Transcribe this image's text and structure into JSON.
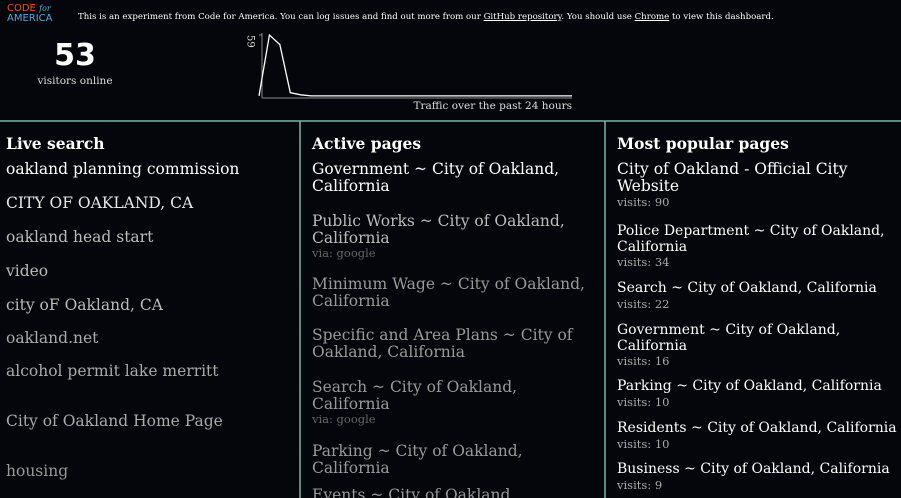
{
  "header": {
    "logo": {
      "code": "CODE",
      "for": "for",
      "america": "AMERICA"
    },
    "notice": {
      "text1": "This is an experiment from Code for America. You can log issues and find out more from our ",
      "link1": "GitHub repository",
      "text2": ". You should use ",
      "link2": "Chrome",
      "text3": " to view this dashboard."
    }
  },
  "visitors": {
    "count": 53,
    "label": "visitors online"
  },
  "chart_data": {
    "type": "line",
    "caption": "Traffic over the past 24 hours",
    "ylim": [
      0,
      59
    ],
    "yticks": [
      59
    ],
    "color": "#ffffff",
    "values": [
      2,
      59,
      50,
      5,
      3,
      2,
      2,
      2,
      2,
      2,
      2,
      2,
      2,
      2,
      2,
      2,
      2,
      2,
      2,
      2,
      2,
      2,
      2,
      2,
      2,
      2,
      2,
      2,
      2,
      2,
      2
    ]
  },
  "live_search": {
    "title": "Live search",
    "items": [
      "oakland planning commission",
      "CITY OF OAKLAND, CA",
      "oakland head start",
      "video",
      "city oF Oakland, CA",
      "oakland.net",
      "alcohol permit lake merritt",
      "City of Oakland Home Page",
      "housing"
    ]
  },
  "active_pages": {
    "title": "Active pages",
    "items": [
      {
        "title": "Government ~ City of Oakland, California"
      },
      {
        "title": "Public Works ~ City of Oakland, California",
        "via": "via: google"
      },
      {
        "title": "Minimum Wage ~ City of Oakland, California"
      },
      {
        "title": "Specific and Area Plans ~ City of Oakland, California"
      },
      {
        "title": "Search ~ City of Oakland, California",
        "via": "via: google"
      },
      {
        "title": "Parking ~ City of Oakland, California"
      },
      {
        "title": "Events ~ City of Oakland, California"
      }
    ]
  },
  "popular_pages": {
    "title": "Most popular pages",
    "visits_prefix": "visits:",
    "items": [
      {
        "title": "City of Oakland - Official City Website",
        "visits": 90
      },
      {
        "title": "Police Department ~ City of Oakland, California",
        "visits": 34
      },
      {
        "title": "Search ~ City of Oakland, California",
        "visits": 22
      },
      {
        "title": "Government ~ City of Oakland, California",
        "visits": 16
      },
      {
        "title": "Parking ~ City of Oakland, California",
        "visits": 10
      },
      {
        "title": "Residents ~ City of Oakland, California",
        "visits": 10
      },
      {
        "title": "Business ~ City of Oakland, California",
        "visits": 9
      }
    ]
  }
}
